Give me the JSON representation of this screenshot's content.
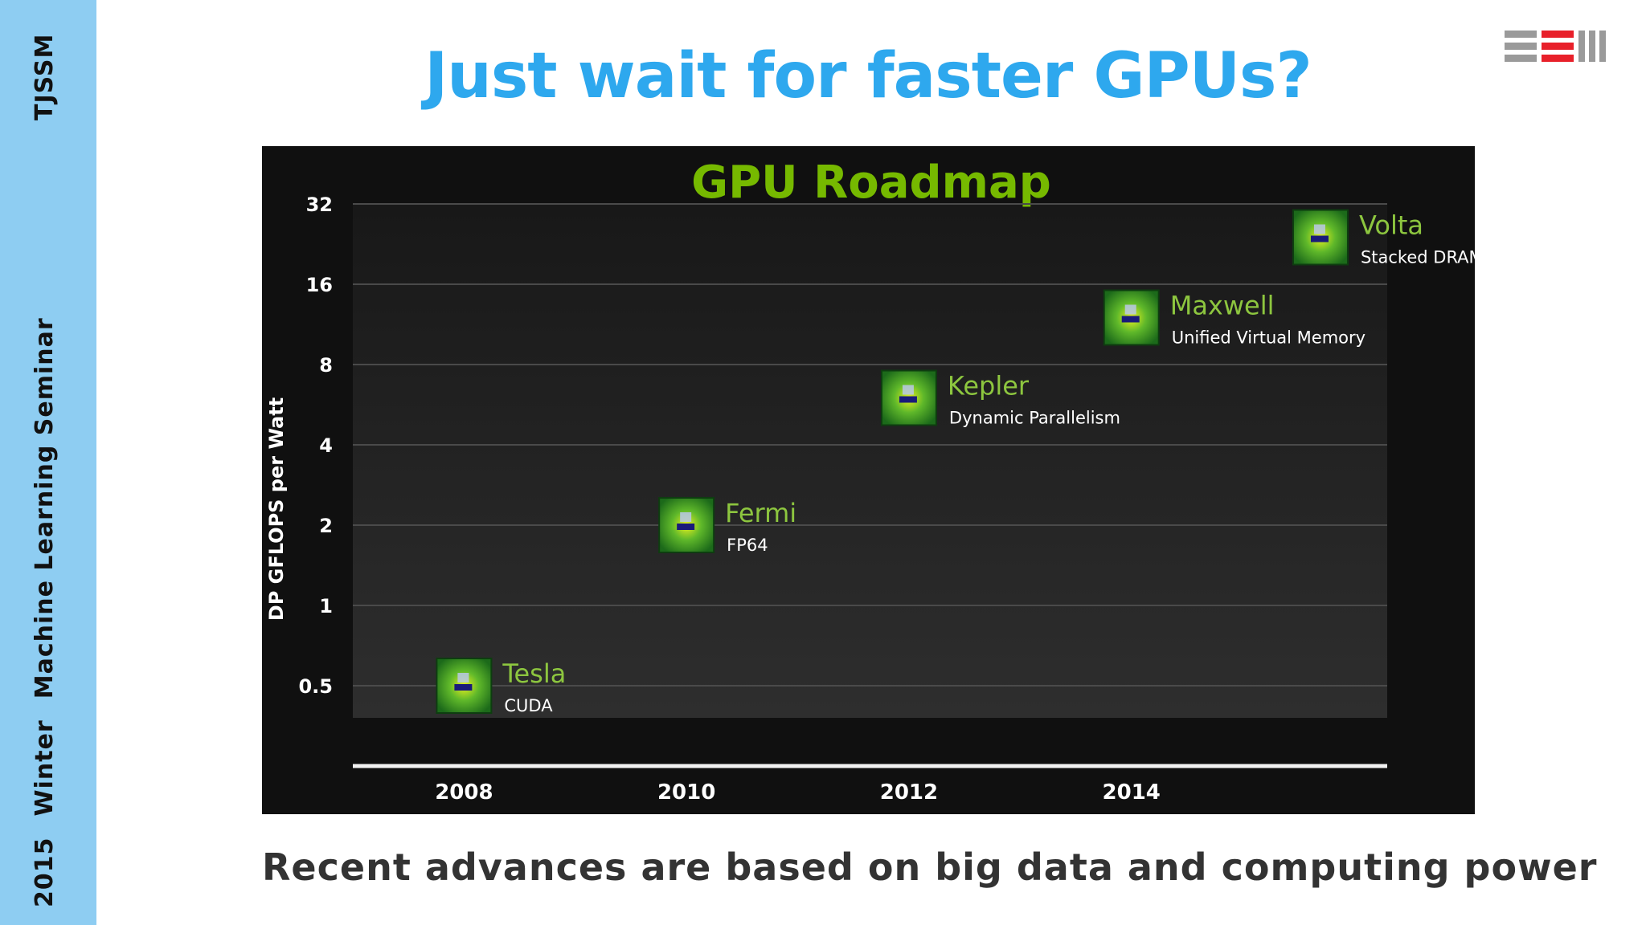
{
  "sidebar": {
    "top_text": "TJSSM",
    "bottom_words": [
      "2015",
      "Winter",
      "Machine Learning Seminar"
    ]
  },
  "slide": {
    "title": "Just wait for faster GPUs?",
    "caption": "Recent advances are based on big data and computing power"
  },
  "colors": {
    "sidebar": "#8ecdf2",
    "title": "#2ea8ee",
    "chart_title": "#76b900",
    "point_label": "#8dc63f",
    "logo_red": "#e8202a",
    "logo_gray": "#9a9a9a"
  },
  "chart_data": {
    "type": "scatter",
    "title": "GPU Roadmap",
    "ylabel": "DP GFLOPS per Watt",
    "xlabel": "",
    "y_scale": "log2",
    "y_ticks": [
      0.5,
      1,
      2,
      4,
      8,
      16,
      32
    ],
    "y_tick_labels": [
      "0.5",
      "1",
      "2",
      "4",
      "8",
      "16",
      "32"
    ],
    "x_ticks": [
      2008,
      2010,
      2012,
      2014
    ],
    "x_tick_labels": [
      "2008",
      "2010",
      "2012",
      "2014"
    ],
    "xlim": [
      2007,
      2016.3
    ],
    "ylim": [
      0.25,
      32
    ],
    "grid": true,
    "points": [
      {
        "name": "Tesla",
        "feature": "CUDA",
        "x": 2008,
        "y": 0.5
      },
      {
        "name": "Fermi",
        "feature": "FP64",
        "x": 2010,
        "y": 2
      },
      {
        "name": "Kepler",
        "feature": "Dynamic Parallelism",
        "x": 2012,
        "y": 6
      },
      {
        "name": "Maxwell",
        "feature": "Unified Virtual Memory",
        "x": 2014,
        "y": 12
      },
      {
        "name": "Volta",
        "feature": "Stacked DRAM",
        "x": 2015.7,
        "y": 24
      }
    ]
  }
}
